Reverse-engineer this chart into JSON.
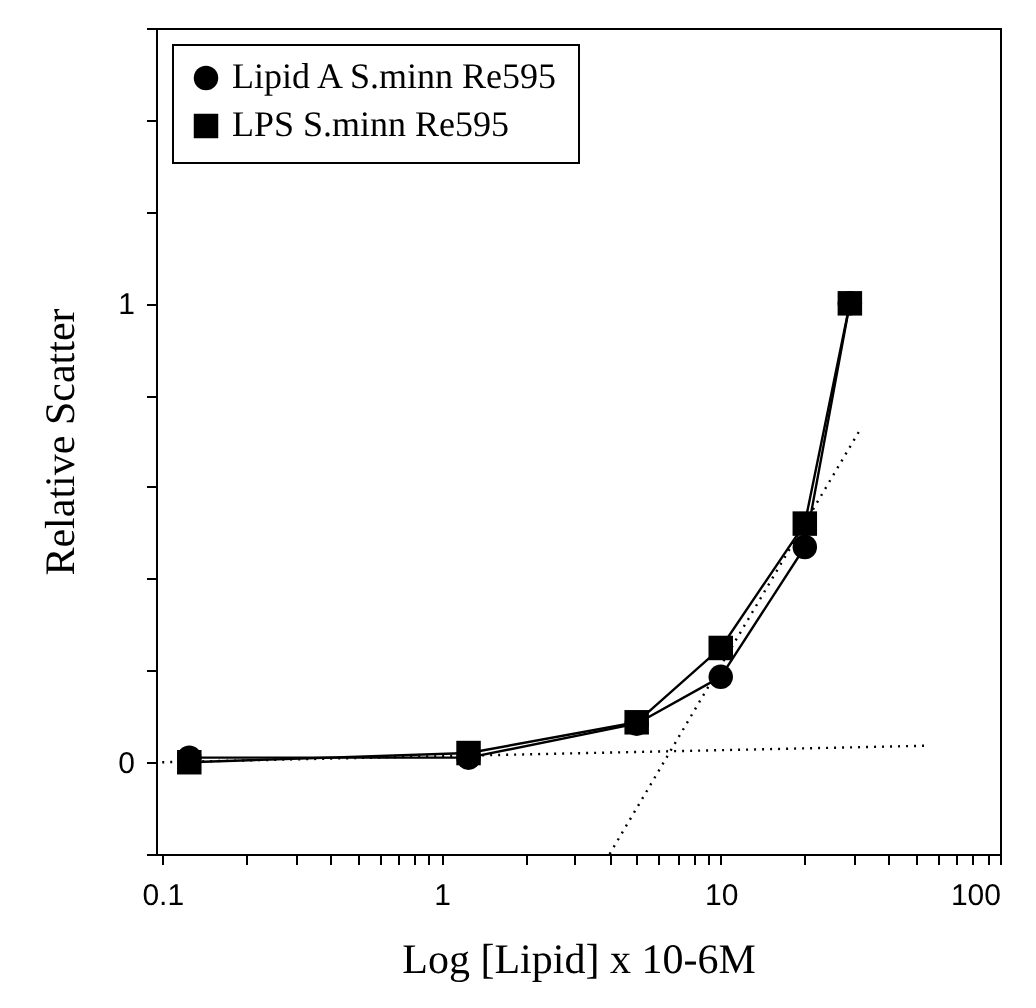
{
  "chart_data": {
    "type": "line",
    "xlabel": "Log [Lipid] x 10-6M",
    "ylabel": "Relative Scatter",
    "log": "x",
    "grid": false,
    "legend": "top left",
    "xlim": [
      0.095,
      100
    ],
    "ylim": [
      -0.2,
      1.6
    ],
    "xticks": [
      0.1,
      {
        "value": 0.2,
        "label": null
      },
      {
        "value": 0.3,
        "label": null
      },
      {
        "value": 0.4,
        "label": null
      },
      {
        "value": 0.5,
        "label": null
      },
      {
        "value": 0.6,
        "label": null
      },
      {
        "value": 0.7,
        "label": null
      },
      {
        "value": 0.8,
        "label": null
      },
      {
        "value": 0.9,
        "label": null
      },
      1,
      {
        "value": 2,
        "label": null
      },
      {
        "value": 3,
        "label": null
      },
      {
        "value": 4,
        "label": null
      },
      {
        "value": 5,
        "label": null
      },
      {
        "value": 6,
        "label": null
      },
      {
        "value": 7,
        "label": null
      },
      {
        "value": 8,
        "label": null
      },
      {
        "value": 9,
        "label": null
      },
      10,
      {
        "value": 20,
        "label": null
      },
      {
        "value": 30,
        "label": null
      },
      {
        "value": 40,
        "label": null
      },
      {
        "value": 50,
        "label": null
      },
      {
        "value": 60,
        "label": null
      },
      {
        "value": 70,
        "label": null
      },
      {
        "value": 80,
        "label": null
      },
      {
        "value": 90,
        "label": null
      },
      100
    ],
    "yticks": [
      {
        "value": -0.2,
        "label": null
      },
      0,
      {
        "value": 0.2,
        "label": null
      },
      {
        "value": 0.4,
        "label": null
      },
      {
        "value": 0.6,
        "label": null
      },
      {
        "value": 0.8,
        "label": null
      },
      1,
      {
        "value": 1.2,
        "label": null
      },
      {
        "value": 1.4,
        "label": null
      },
      {
        "value": 1.6,
        "label": null
      }
    ],
    "series": [
      {
        "name": "Lipid A S.minn Re595",
        "color": "#000000",
        "marker": "circle",
        "line_style": "solid",
        "x": [
          0.125,
          1.25,
          5,
          10,
          20,
          29
        ],
        "values": [
          0.01,
          0.01,
          0.084,
          0.186,
          0.469,
          1.0
        ]
      },
      {
        "name": "LPS S.minn Re595",
        "color": "#000000",
        "marker": "square",
        "line_style": "solid",
        "x": [
          0.125,
          1.25,
          5,
          10,
          20,
          29
        ],
        "values": [
          0.0,
          0.02,
          0.087,
          0.249,
          0.52,
          1.0
        ]
      },
      {
        "color": "#000000",
        "marker": "none",
        "line_style": "dotted",
        "x": [
          0.1,
          55
        ],
        "values": [
          0.0,
          0.036
        ]
      },
      {
        "color": "#000000",
        "marker": "none",
        "line_style": "dotted",
        "x": [
          4.0,
          32
        ],
        "values": [
          -0.2,
          0.731
        ]
      }
    ]
  }
}
